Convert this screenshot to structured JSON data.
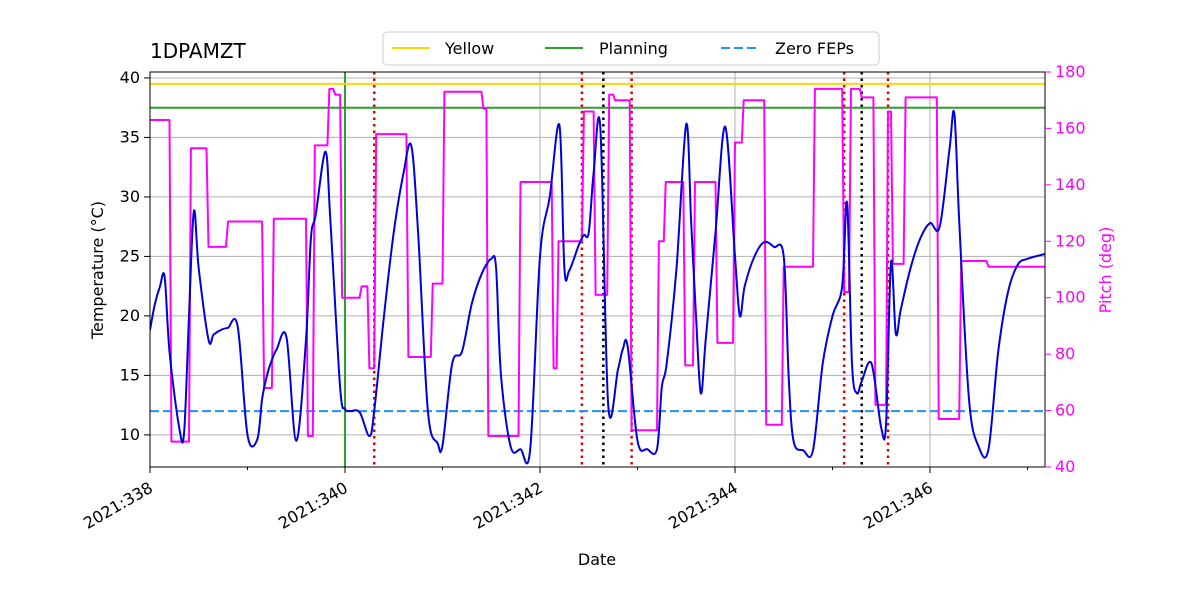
{
  "chart_data": {
    "type": "line",
    "title": "1DPAMZT",
    "xlabel": "Date",
    "ylabel": "Temperature ($^\\circ$C)",
    "ylabel_display": "Temperature (°C)",
    "y2label": "Pitch (deg)",
    "xlim": [
      338.0,
      347.18
    ],
    "ylim": [
      7.3,
      40.5
    ],
    "y2lim": [
      40,
      180
    ],
    "x_ticks": [
      338,
      340,
      342,
      344,
      346
    ],
    "x_tick_labels": [
      "2021:338",
      "2021:340",
      "2021:342",
      "2021:344",
      "2021:346"
    ],
    "y_ticks": [
      10,
      15,
      20,
      25,
      30,
      35,
      40
    ],
    "y_tick_labels": [
      "10",
      "15",
      "20",
      "25",
      "30",
      "35",
      "40"
    ],
    "y2_ticks": [
      40,
      60,
      80,
      100,
      120,
      140,
      160,
      180
    ],
    "y2_tick_labels": [
      "40",
      "60",
      "80",
      "100",
      "120",
      "140",
      "160",
      "180"
    ],
    "grid": true,
    "legend_position": "top-center",
    "legend": [
      {
        "label": "Yellow",
        "color": "#ffd700",
        "style": "solid"
      },
      {
        "label": "Planning",
        "color": "#2ca02c",
        "style": "solid"
      },
      {
        "label": "Zero FEPs",
        "color": "#1e90ff",
        "style": "dashed"
      }
    ],
    "limits": {
      "yellow": 39.5,
      "planning": 37.5,
      "zero_feps": 12.0
    },
    "colors": {
      "temperature": "#0000dd",
      "pitch": "#ff00ff",
      "yellow": "#ffd700",
      "planning": "#2ca02c",
      "zero_feps": "#1e90ff",
      "red_marks": "#dd0000",
      "black_marks": "#000000",
      "pitch_axis": "#ff00ff"
    },
    "planning_vline": 340.0,
    "red_vlines": [
      340.3,
      342.43,
      342.94,
      345.12,
      345.57
    ],
    "black_vlines": [
      342.65,
      345.3
    ],
    "temperature": {
      "name": "1DPAMZT",
      "x": [
        338.0,
        338.05,
        338.1,
        338.15,
        338.2,
        338.3,
        338.35,
        338.4,
        338.45,
        338.5,
        338.6,
        338.65,
        338.7,
        338.75,
        338.8,
        338.9,
        339.0,
        339.1,
        339.15,
        339.2,
        339.25,
        339.3,
        339.4,
        339.5,
        339.6,
        339.65,
        339.7,
        339.8,
        339.85,
        339.95,
        340.0,
        340.05,
        340.15,
        340.25,
        340.3,
        340.4,
        340.5,
        340.6,
        340.68,
        340.75,
        340.85,
        340.95,
        341.0,
        341.1,
        341.2,
        341.3,
        341.4,
        341.5,
        341.55,
        341.6,
        341.7,
        341.8,
        341.9,
        342.0,
        342.1,
        342.2,
        342.25,
        342.3,
        342.4,
        342.45,
        342.5,
        342.55,
        342.62,
        342.7,
        342.8,
        342.85,
        342.9,
        343.0,
        343.1,
        343.2,
        343.25,
        343.3,
        343.4,
        343.5,
        343.55,
        343.6,
        343.65,
        343.7,
        343.8,
        343.9,
        344.0,
        344.05,
        344.1,
        344.2,
        344.3,
        344.4,
        344.5,
        344.55,
        344.6,
        344.7,
        344.8,
        344.9,
        345.0,
        345.1,
        345.15,
        345.2,
        345.25,
        345.3,
        345.4,
        345.5,
        345.55,
        345.6,
        345.65,
        345.7,
        345.8,
        345.9,
        346.0,
        346.1,
        346.2,
        346.25,
        346.3,
        346.4,
        346.5,
        346.6,
        346.7,
        346.8,
        346.9,
        347.0,
        347.18
      ],
      "y": [
        18.8,
        21.0,
        22.4,
        23.3,
        17.0,
        10.6,
        10.2,
        20.0,
        28.8,
        24.0,
        18.0,
        18.4,
        18.7,
        18.9,
        19.0,
        19.1,
        10.0,
        9.6,
        13.0,
        15.0,
        16.3,
        17.2,
        18.2,
        9.5,
        18.0,
        26.5,
        28.5,
        33.8,
        28.0,
        14.0,
        12.2,
        12.0,
        11.9,
        9.9,
        12.0,
        20.0,
        27.0,
        32.0,
        34.3,
        27.0,
        12.0,
        9.3,
        9.1,
        16.0,
        17.0,
        21.0,
        23.5,
        24.8,
        24.0,
        15.0,
        9.0,
        8.8,
        8.8,
        25.0,
        30.0,
        36.0,
        24.0,
        23.8,
        26.0,
        26.8,
        27.0,
        32.0,
        35.7,
        12.5,
        15.5,
        17.2,
        17.4,
        9.5,
        8.8,
        8.8,
        14.0,
        16.0,
        24.0,
        36.1,
        28.0,
        20.0,
        13.5,
        18.0,
        27.0,
        35.9,
        25.0,
        20.0,
        22.5,
        25.0,
        26.2,
        25.8,
        25.0,
        15.0,
        9.5,
        8.7,
        8.7,
        16.0,
        20.0,
        22.5,
        29.5,
        16.0,
        13.5,
        14.5,
        16.0,
        10.6,
        11.0,
        24.5,
        18.5,
        20.5,
        24.0,
        26.5,
        27.8,
        27.5,
        34.0,
        37.0,
        28.0,
        13.0,
        9.0,
        8.8,
        17.0,
        22.0,
        24.3,
        24.8,
        25.2
      ]
    },
    "pitch": {
      "name": "Pitch",
      "x": [
        338.0,
        338.2,
        338.22,
        338.4,
        338.42,
        338.58,
        338.6,
        338.78,
        338.8,
        339.15,
        339.17,
        339.25,
        339.27,
        339.6,
        339.62,
        339.67,
        339.69,
        339.82,
        339.84,
        339.88,
        339.9,
        339.95,
        339.97,
        340.15,
        340.17,
        340.23,
        340.25,
        340.3,
        340.32,
        340.63,
        340.65,
        340.88,
        340.9,
        341.0,
        341.02,
        341.4,
        341.42,
        341.45,
        341.47,
        341.78,
        341.8,
        342.12,
        342.14,
        342.17,
        342.19,
        342.43,
        342.45,
        342.55,
        342.57,
        342.69,
        342.71,
        342.75,
        342.77,
        342.92,
        342.94,
        343.2,
        343.22,
        343.27,
        343.29,
        343.47,
        343.49,
        343.57,
        343.59,
        343.8,
        343.82,
        343.98,
        344.0,
        344.07,
        344.09,
        344.3,
        344.32,
        344.48,
        344.5,
        344.8,
        344.82,
        345.1,
        345.12,
        345.17,
        345.19,
        345.28,
        345.3,
        345.42,
        345.44,
        345.55,
        345.57,
        345.6,
        345.62,
        345.73,
        345.75,
        346.07,
        346.09,
        346.3,
        346.32,
        346.58,
        346.6,
        346.88,
        346.9,
        347.18
      ],
      "y": [
        163,
        163,
        49,
        49,
        153,
        153,
        118,
        118,
        127,
        127,
        68,
        68,
        128,
        128,
        51,
        51,
        154,
        154,
        174,
        174,
        172,
        172,
        100,
        100,
        104,
        104,
        75,
        75,
        158,
        158,
        79,
        79,
        105,
        105,
        173,
        173,
        167,
        167,
        51,
        51,
        141,
        141,
        75,
        75,
        120,
        120,
        166,
        166,
        101,
        101,
        172,
        172,
        170,
        170,
        53,
        53,
        120,
        120,
        141,
        141,
        76,
        76,
        141,
        141,
        84,
        84,
        155,
        155,
        170,
        170,
        55,
        55,
        111,
        111,
        174,
        174,
        102,
        102,
        174,
        174,
        171,
        171,
        62,
        62,
        166,
        166,
        112,
        112,
        171,
        171,
        57,
        57,
        113,
        113,
        111,
        111,
        111,
        111
      ]
    }
  }
}
